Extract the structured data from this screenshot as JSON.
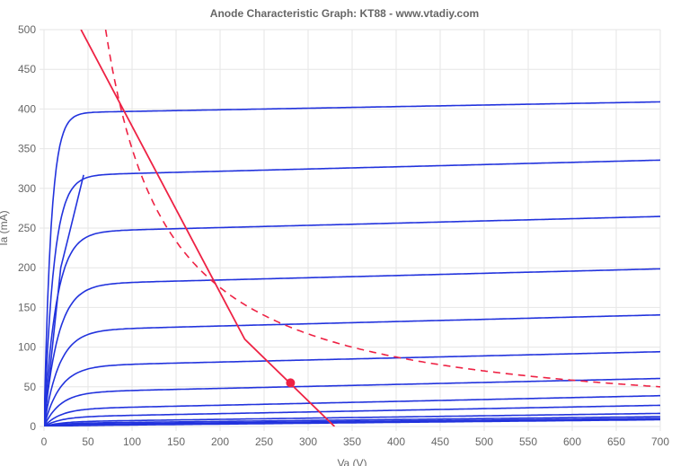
{
  "chart_data": {
    "type": "line",
    "title": "Anode Characteristic Graph: KT88 - www.vtadiy.com",
    "xlabel": "Va (V)",
    "ylabel": "Ia (mA)",
    "xlim": [
      0,
      700
    ],
    "ylim": [
      0,
      500
    ],
    "x_ticks": [
      0,
      50,
      100,
      150,
      200,
      250,
      300,
      350,
      400,
      450,
      500,
      550,
      600,
      650,
      700
    ],
    "y_ticks": [
      0,
      50,
      100,
      150,
      200,
      250,
      300,
      350,
      400,
      450,
      500
    ],
    "grid": true,
    "legend": "none",
    "colors": {
      "curves": "#2233dd",
      "load_line": "#ee2244",
      "grid": "#e6e6e6",
      "axis_text": "#666666"
    },
    "curve_params": [
      {
        "i0": 395,
        "slope": 0.02,
        "knee": 8
      },
      {
        "i0": 316,
        "slope": 0.028,
        "knee": 11
      },
      {
        "i0": 245,
        "slope": 0.028,
        "knee": 14
      },
      {
        "i0": 179,
        "slope": 0.028,
        "knee": 16
      },
      {
        "i0": 121,
        "slope": 0.028,
        "knee": 17
      },
      {
        "i0": 76,
        "slope": 0.026,
        "knee": 18
      },
      {
        "i0": 43,
        "slope": 0.025,
        "knee": 18
      },
      {
        "i0": 22,
        "slope": 0.024,
        "knee": 18
      },
      {
        "i0": 12,
        "slope": 0.021,
        "knee": 18
      },
      {
        "i0": 6,
        "slope": 0.015,
        "knee": 18
      },
      {
        "i0": 4,
        "slope": 0.012,
        "knee": 18
      },
      {
        "i0": 2.5,
        "slope": 0.011,
        "knee": 18
      },
      {
        "i0": 1.5,
        "slope": 0.011,
        "knee": 18
      },
      {
        "i0": 0.8,
        "slope": 0.011,
        "knee": 18
      }
    ],
    "triode_line": [
      [
        0,
        0
      ],
      [
        19,
        200
      ],
      [
        28,
        240
      ],
      [
        45,
        317
      ]
    ],
    "load_line": [
      [
        42,
        500
      ],
      [
        228,
        110
      ],
      [
        330,
        0
      ]
    ],
    "power_curve": {
      "watts": 35,
      "x_from": 70,
      "x_to": 700
    },
    "operating_point": {
      "x": 280,
      "y": 55
    }
  }
}
